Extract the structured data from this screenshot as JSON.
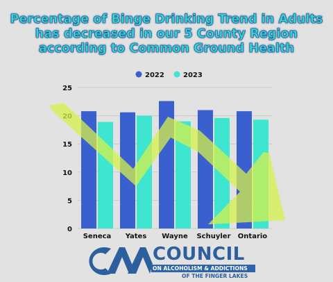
{
  "title": "Percentage of Binge Drinking Trend in Adults has decreased in our 5 County Region according to Common Ground Health",
  "chart_data": {
    "type": "bar",
    "categories": [
      "Seneca",
      "Yates",
      "Wayne",
      "Schuyler",
      "Ontario"
    ],
    "series": [
      {
        "name": "2022",
        "color": "#3a5fcf",
        "values": [
          20.8,
          20.6,
          22.6,
          21.0,
          20.8
        ]
      },
      {
        "name": "2023",
        "color": "#3ee6d2",
        "values": [
          18.9,
          20.0,
          19.0,
          19.6,
          19.3
        ]
      }
    ],
    "yticks": [
      0,
      5,
      10,
      15,
      20,
      25
    ],
    "ylim": [
      0,
      25
    ],
    "legend_position": "top-center",
    "grid": true,
    "trend_arrow_color": "#d6f04a"
  },
  "logo": {
    "mark": "CAA",
    "name": "COUNCIL",
    "line1": "ON ALCOHOLISM & ADDICTIONS",
    "line2": "OF THE FINGER LAKES"
  }
}
